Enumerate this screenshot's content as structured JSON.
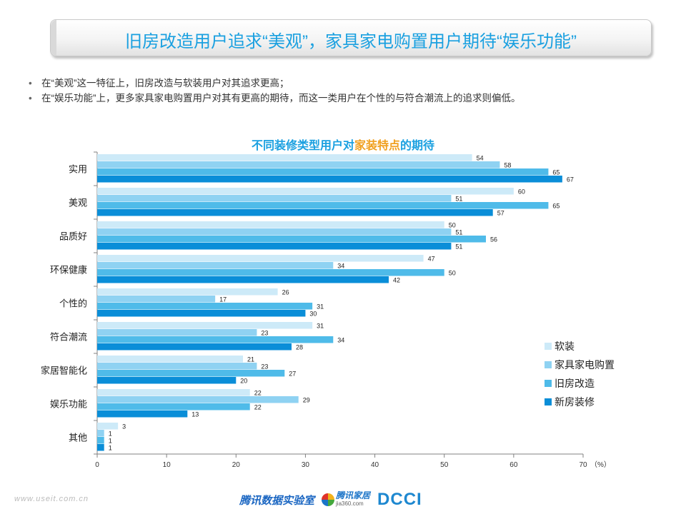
{
  "header": {
    "title": "旧房改造用户追求“美观”，家具家电购置用户期待“娱乐功能”"
  },
  "bullets": [
    "在“美观”这一特征上，旧房改造与软装用户对其追求更高；",
    "在“娱乐功能”上，更多家具家电购置用户对其有更高的期待，而这一类用户在个性的与符合潮流上的追求则偏低。"
  ],
  "bullet_symbol": "•",
  "chart_data": {
    "type": "bar",
    "orientation": "horizontal",
    "title_parts": [
      "不同装修类型用户对",
      "家装特点",
      "的期待"
    ],
    "categories": [
      "实用",
      "美观",
      "品质好",
      "环保健康",
      "个性的",
      "符合潮流",
      "家居智能化",
      "娱乐功能",
      "其他"
    ],
    "series": [
      {
        "name": "软装",
        "color": "#cdeaf8",
        "values": [
          54,
          60,
          50,
          47,
          26,
          31,
          21,
          22,
          3
        ]
      },
      {
        "name": "家具家电购置",
        "color": "#8fd2f2",
        "values": [
          58,
          51,
          51,
          34,
          17,
          23,
          23,
          29,
          1
        ]
      },
      {
        "name": "旧房改造",
        "color": "#4fbbe9",
        "values": [
          65,
          65,
          56,
          50,
          31,
          34,
          27,
          22,
          1
        ]
      },
      {
        "name": "新房装修",
        "color": "#0a8ed8",
        "values": [
          67,
          57,
          51,
          42,
          30,
          28,
          20,
          13,
          1
        ]
      }
    ],
    "xlim": [
      0,
      70
    ],
    "xticks": [
      0,
      10,
      20,
      30,
      40,
      50,
      60,
      70
    ],
    "x_unit": "（%）",
    "legend_position": "right",
    "grid": false
  },
  "footer": {
    "website": "www.useit.com.cn",
    "logo_lab": "腾讯数据实验室",
    "logo_jiaju": "腾讯家居",
    "logo_jiaju_sub": "jia360.com",
    "logo_dcci": "DCCI"
  }
}
